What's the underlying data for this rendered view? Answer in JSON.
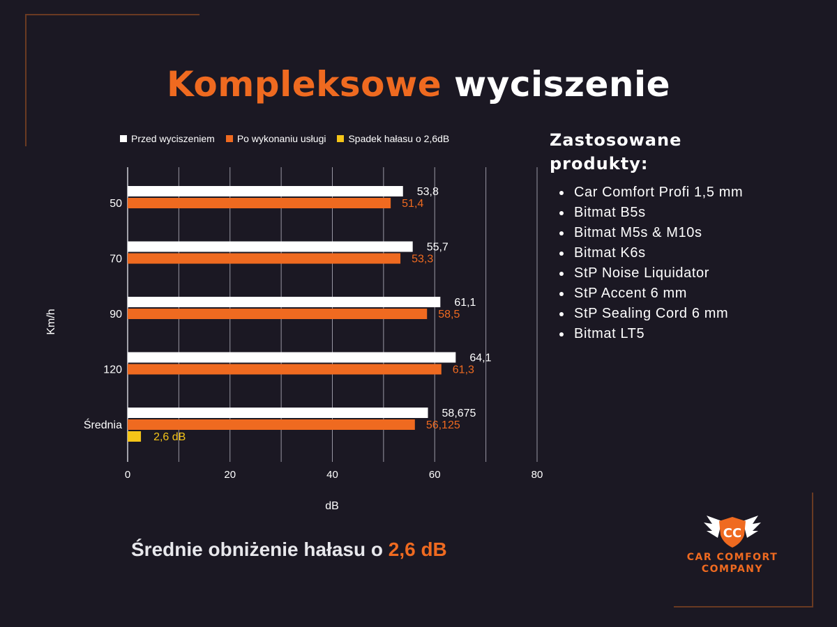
{
  "title": {
    "part1": "Kompleksowe",
    "part2": "wyciszenie"
  },
  "legend": [
    {
      "label": "Przed wyciszeniem",
      "color": "#ffffff"
    },
    {
      "label": "Po wykonaniu usługi",
      "color": "#ef6a20"
    },
    {
      "label": "Spadek hałasu o 2,6dB",
      "color": "#f5c518"
    }
  ],
  "chart_data": {
    "type": "bar",
    "orientation": "horizontal",
    "categories": [
      "50",
      "70",
      "90",
      "120",
      "Średnia"
    ],
    "series": [
      {
        "name": "Przed wyciszeniem",
        "color": "#ffffff",
        "values": [
          53.8,
          55.7,
          61.1,
          64.1,
          58.675
        ],
        "labels": [
          "53,8",
          "55,7",
          "61,1",
          "64,1",
          "58,675"
        ]
      },
      {
        "name": "Po wykonaniu usługi",
        "color": "#ef6a20",
        "values": [
          51.4,
          53.3,
          58.5,
          61.3,
          56.125
        ],
        "labels": [
          "51,4",
          "53,3",
          "58,5",
          "61,3",
          "56,125"
        ]
      },
      {
        "name": "Spadek hałasu o 2,6dB",
        "color": "#f5c518",
        "values": [
          null,
          null,
          null,
          null,
          2.6
        ],
        "labels": [
          null,
          null,
          null,
          null,
          "2,6 dB"
        ]
      }
    ],
    "xlabel": "dB",
    "ylabel": "Km/h",
    "xlim": [
      0,
      80
    ],
    "xticks": [
      "0",
      "20",
      "40",
      "60",
      "80"
    ],
    "grid": true,
    "legend_position": "top"
  },
  "products": {
    "title": "Zastosowane produkty:",
    "items": [
      "Car Comfort Profi 1,5 mm",
      "Bitmat B5s",
      "Bitmat M5s & M10s",
      "Bitmat K6s",
      "StP Noise Liquidator",
      "StP Accent 6 mm",
      "StP Sealing Cord 6 mm",
      "Bitmat LT5"
    ]
  },
  "summary": {
    "text": "Średnie obniżenie hałasu o ",
    "highlight": "2,6 dB"
  },
  "logo": {
    "line1": "CAR COMFORT",
    "line2": "COMPANY",
    "monogram": "CC"
  }
}
